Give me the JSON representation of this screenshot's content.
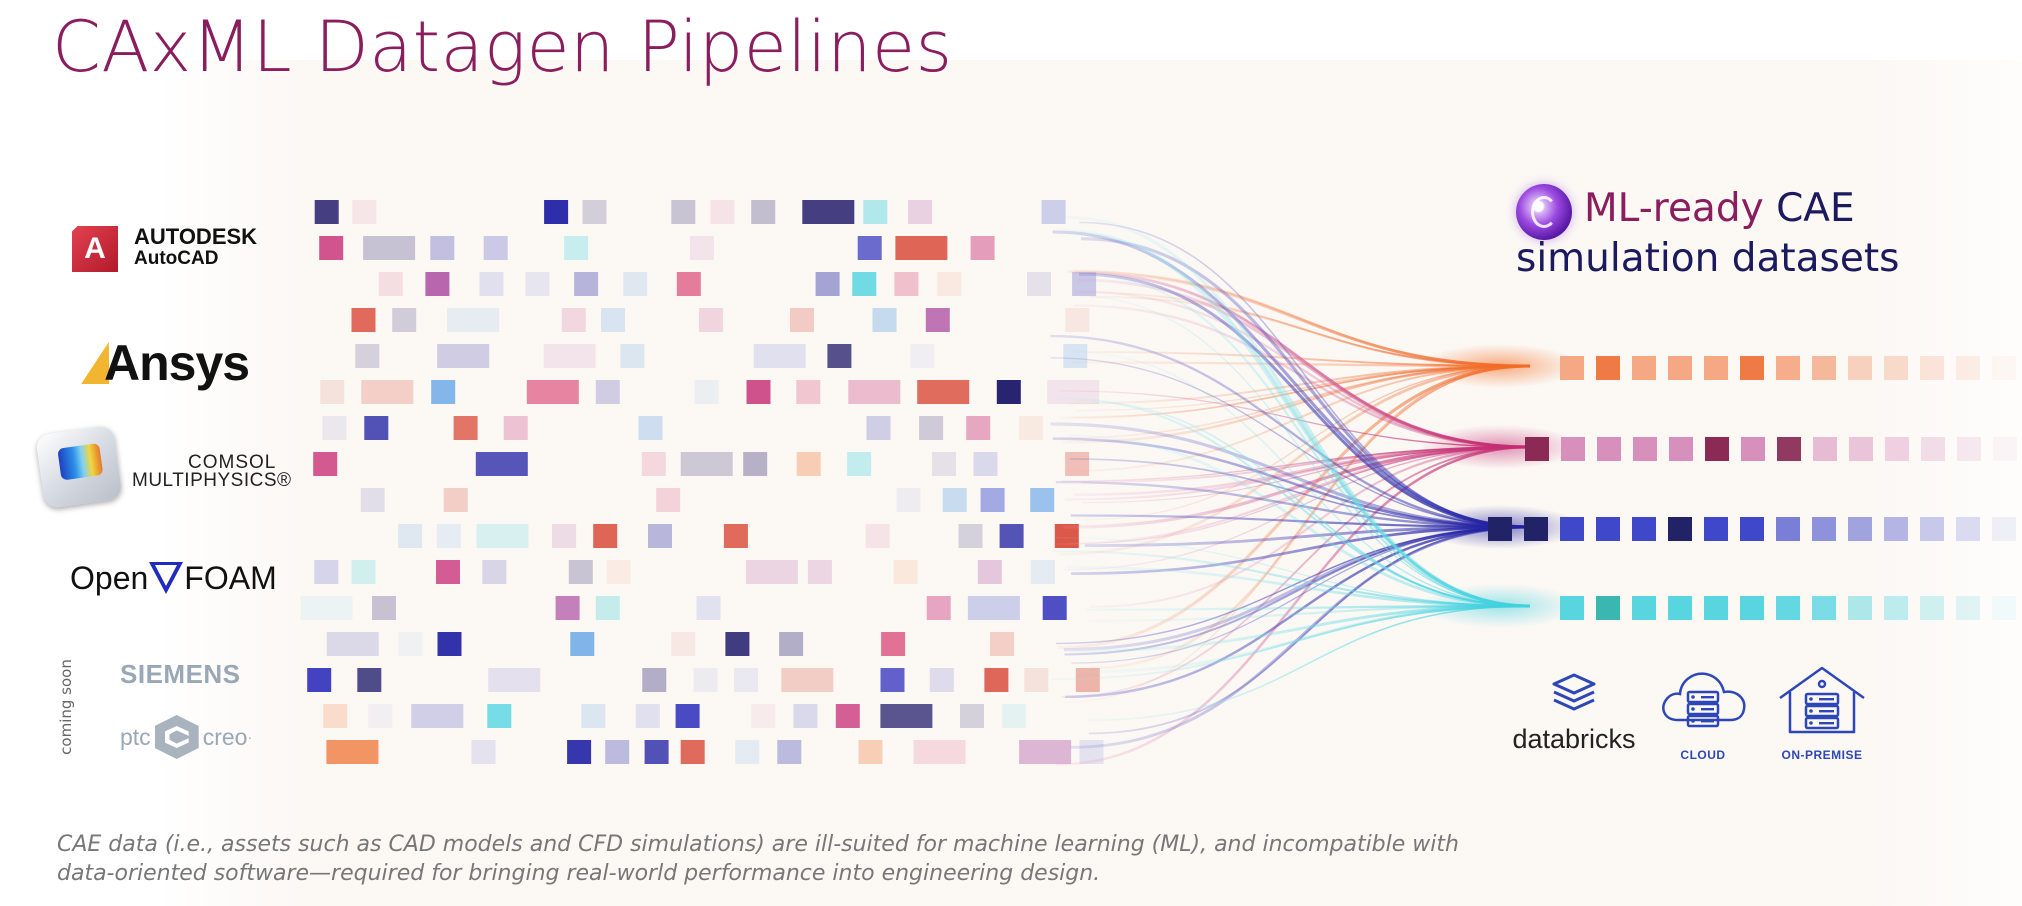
{
  "title": "CAxML Datagen Pipelines",
  "sources": [
    {
      "name": "autodesk-autocad",
      "line1": "AUTODESK",
      "line2": "AutoCAD",
      "badge": "A",
      "icon": "autodesk-badge-icon"
    },
    {
      "name": "ansys",
      "text": "Ansys",
      "icon": "ansys-slash-icon"
    },
    {
      "name": "comsol",
      "line1": "COMSOL",
      "line2": "MULTIPHYSICS®",
      "icon": "comsol-cube-icon"
    },
    {
      "name": "openfoam",
      "left": "Open",
      "right": "FOAM",
      "icon": "openfoam-triangle-icon"
    }
  ],
  "coming_soon": {
    "label": "coming soon",
    "items": [
      {
        "name": "siemens",
        "text": "SIEMENS"
      },
      {
        "name": "ptc-creo",
        "left": "ptc",
        "right": "creo",
        "mark": "·"
      }
    ]
  },
  "output": {
    "title_ml": "ML-ready",
    "title_cae": "CAE",
    "title_line2": "simulation datasets",
    "icon": "ml-orb-icon"
  },
  "destinations": [
    {
      "name": "databricks",
      "label": "databricks",
      "icon": "databricks-stack-icon"
    },
    {
      "name": "cloud",
      "label": "CLOUD",
      "icon": "cloud-server-icon"
    },
    {
      "name": "on-premise",
      "label": "ON-PREMISE",
      "icon": "house-server-icon"
    }
  ],
  "caption": "CAE data (i.e., assets such as CAD models and CFD simulations) are ill-suited for machine learning (ML), and incompatible with data-oriented software—required for bringing real-world performance into engineering design.",
  "colors": {
    "title": "#8a1d5e",
    "navy": "#1c1a5e",
    "stream_orange": "#f07a3e",
    "stream_magenta": "#c8357a",
    "stream_navy": "#2a2aa8",
    "stream_cyan": "#4fd4e0",
    "accent_blue": "#2d47b8"
  }
}
